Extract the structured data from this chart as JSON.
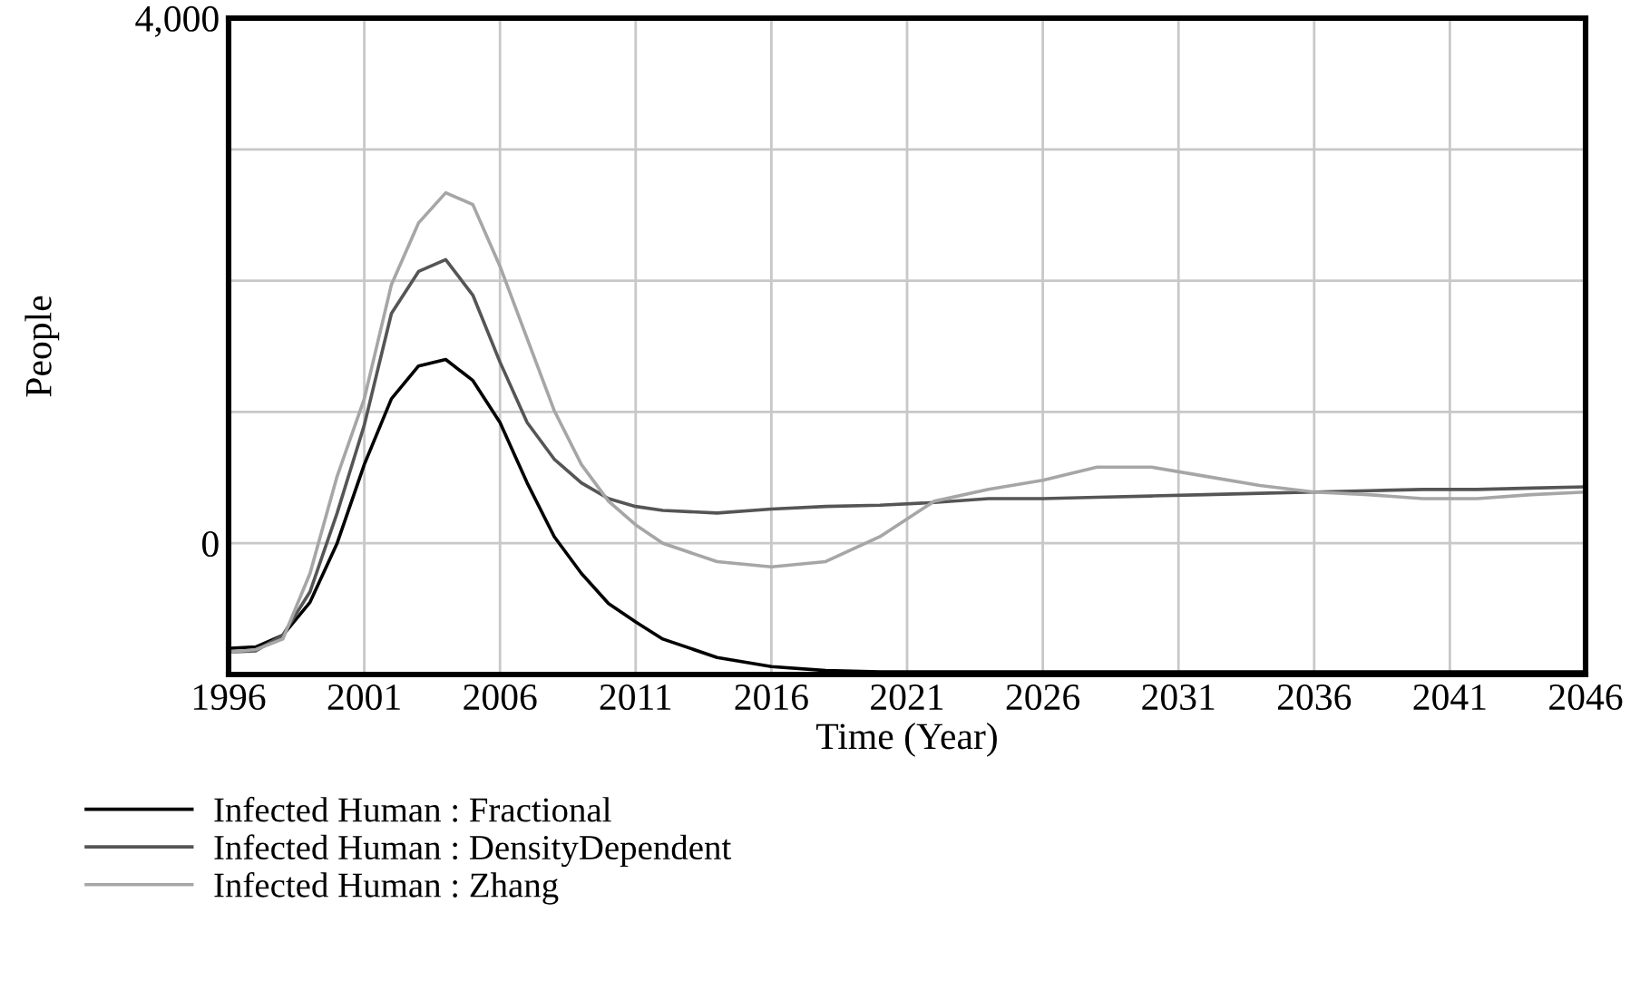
{
  "chart_data": {
    "type": "line",
    "xlabel": "Time (Year)",
    "ylabel": "People",
    "x": [
      1996,
      1997,
      1998,
      1999,
      2000,
      2001,
      2002,
      2003,
      2004,
      2005,
      2006,
      2007,
      2008,
      2009,
      2010,
      2011,
      2012,
      2014,
      2016,
      2018,
      2020,
      2022,
      2024,
      2026,
      2028,
      2030,
      2032,
      2034,
      2036,
      2038,
      2040,
      2042,
      2044,
      2046
    ],
    "series": [
      {
        "name": "Infected Human : Fractional",
        "color": "#000000",
        "values": [
          -800,
          -790,
          -700,
          -450,
          0,
          600,
          1100,
          1350,
          1400,
          1240,
          920,
          460,
          50,
          -230,
          -460,
          -600,
          -730,
          -870,
          -940,
          -970,
          -980,
          -980,
          -980,
          -980,
          -980,
          -980,
          -980,
          -980,
          -980,
          -980,
          -980,
          -980,
          -980,
          -980
        ]
      },
      {
        "name": "Infected Human : DensityDependent",
        "color": "#555555",
        "values": [
          -830,
          -820,
          -700,
          -370,
          230,
          900,
          1750,
          2070,
          2160,
          1890,
          1380,
          920,
          640,
          460,
          340,
          280,
          250,
          230,
          260,
          280,
          290,
          310,
          340,
          340,
          350,
          360,
          370,
          380,
          390,
          400,
          410,
          410,
          420,
          430
        ]
      },
      {
        "name": "Infected Human : Zhang",
        "color": "#a6a6a6",
        "values": [
          -830,
          -810,
          -730,
          -230,
          510,
          1100,
          1970,
          2440,
          2670,
          2580,
          2110,
          1560,
          1010,
          600,
          320,
          140,
          0,
          -140,
          -180,
          -140,
          50,
          320,
          410,
          480,
          580,
          580,
          510,
          440,
          390,
          370,
          340,
          340,
          370,
          390
        ]
      }
    ],
    "xlim": [
      1996,
      2046
    ],
    "xticks": [
      1996,
      2001,
      2006,
      2011,
      2016,
      2021,
      2026,
      2031,
      2036,
      2041,
      2046
    ],
    "ylim": [
      -1000,
      4000
    ],
    "yticks": [
      {
        "value": -1000,
        "label": null
      },
      0,
      {
        "value": 1000,
        "label": null
      },
      {
        "value": 2000,
        "label": null
      },
      {
        "value": 3000,
        "label": null
      },
      {
        "value": 4000,
        "label": "4,000"
      }
    ],
    "grid": true,
    "legend": "bottom",
    "line_style": "solid"
  }
}
